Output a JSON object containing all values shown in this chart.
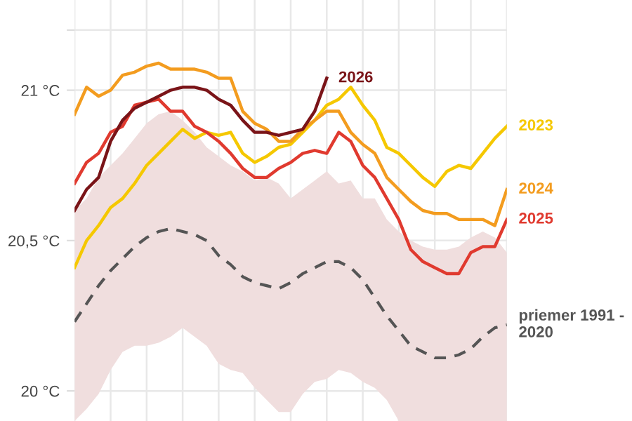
{
  "chart_data": {
    "type": "line",
    "categories": [
      null,
      null,
      null,
      null,
      null,
      null,
      null,
      null,
      null,
      null,
      null,
      null,
      null,
      null,
      null,
      null,
      null,
      null,
      null,
      null,
      null,
      null,
      null,
      null,
      null,
      null,
      null,
      null,
      null,
      null,
      null,
      null,
      null,
      null,
      null,
      null,
      null
    ],
    "series": [
      {
        "name": "priemer 1991 - 2020",
        "color": "#555555",
        "line_style": "dashed",
        "values": [
          20.23,
          20.29,
          20.35,
          20.4,
          20.44,
          20.48,
          20.51,
          20.53,
          20.54,
          20.53,
          20.52,
          20.5,
          20.45,
          20.42,
          20.38,
          20.36,
          20.35,
          20.34,
          20.36,
          20.39,
          20.41,
          20.43,
          20.43,
          20.41,
          20.37,
          20.31,
          20.25,
          20.2,
          20.15,
          20.13,
          20.11,
          20.11,
          20.12,
          20.14,
          20.18,
          20.21,
          20.22
        ],
        "upper": [
          20.6,
          20.64,
          20.71,
          20.75,
          20.79,
          20.84,
          20.89,
          20.92,
          20.93,
          20.9,
          20.86,
          20.81,
          20.78,
          20.75,
          20.73,
          20.7,
          20.71,
          20.69,
          20.64,
          20.67,
          20.7,
          20.73,
          20.69,
          20.7,
          20.64,
          20.64,
          20.57,
          20.53,
          20.5,
          20.48,
          20.47,
          20.47,
          20.48,
          20.51,
          20.53,
          20.51,
          20.46
        ],
        "lower": [
          19.9,
          19.94,
          19.99,
          20.07,
          20.13,
          20.15,
          20.15,
          20.16,
          20.18,
          20.21,
          20.18,
          20.15,
          20.09,
          20.07,
          20.06,
          20.01,
          19.97,
          19.93,
          19.93,
          19.99,
          20.03,
          20.04,
          20.07,
          20.06,
          20.03,
          20.01,
          19.97,
          19.9,
          19.9,
          19.9,
          19.9,
          19.9,
          19.9,
          19.9,
          19.9,
          19.9,
          19.9
        ]
      },
      {
        "name": "2023",
        "color": "#f5c800",
        "values": [
          20.41,
          20.5,
          20.55,
          20.61,
          20.64,
          20.69,
          20.75,
          20.79,
          20.83,
          20.87,
          20.84,
          20.86,
          20.85,
          20.86,
          20.79,
          20.76,
          20.78,
          20.81,
          20.82,
          20.86,
          20.9,
          20.95,
          20.97,
          21.01,
          20.95,
          20.9,
          20.81,
          20.79,
          20.75,
          20.71,
          20.68,
          20.73,
          20.75,
          20.74,
          20.79,
          20.84,
          20.88
        ]
      },
      {
        "name": "2024",
        "color": "#f39c1f",
        "values": [
          20.92,
          21.01,
          20.98,
          21.0,
          21.05,
          21.06,
          21.08,
          21.09,
          21.07,
          21.07,
          21.07,
          21.06,
          21.04,
          21.04,
          20.93,
          20.89,
          20.87,
          20.83,
          20.83,
          20.87,
          20.9,
          20.93,
          20.93,
          20.86,
          20.82,
          20.79,
          20.71,
          20.67,
          20.63,
          20.6,
          20.59,
          20.59,
          20.57,
          20.57,
          20.57,
          20.55,
          20.67
        ]
      },
      {
        "name": "2025",
        "color": "#e03a2f",
        "values": [
          20.69,
          20.76,
          20.79,
          20.86,
          20.88,
          20.95,
          20.96,
          20.97,
          20.93,
          20.93,
          20.88,
          20.86,
          20.83,
          20.79,
          20.74,
          20.71,
          20.71,
          20.74,
          20.76,
          20.79,
          20.8,
          20.79,
          20.86,
          20.83,
          20.75,
          20.71,
          20.64,
          20.57,
          20.47,
          20.43,
          20.41,
          20.39,
          20.39,
          20.46,
          20.48,
          20.48,
          20.57
        ]
      },
      {
        "name": "2026",
        "color": "#7a1418",
        "values": [
          20.6,
          20.67,
          20.71,
          20.83,
          20.9,
          20.94,
          20.96,
          20.98,
          21.0,
          21.01,
          21.01,
          21.0,
          20.97,
          20.95,
          20.9,
          20.86,
          20.86,
          20.85,
          20.86,
          20.87,
          20.93,
          21.04,
          null,
          null,
          null,
          null,
          null,
          null,
          null,
          null,
          null,
          null,
          null,
          null,
          null,
          null,
          null
        ]
      }
    ],
    "ylim": [
      19.9,
      21.3
    ],
    "yticks": [
      {
        "value": 20,
        "label": "20 °C"
      },
      {
        "value": 20.5,
        "label": "20,5 °C"
      },
      {
        "value": 21,
        "label": "21 °C"
      },
      {
        "value": 21.2,
        "label": null
      }
    ],
    "grid": true,
    "tick_labels": "y",
    "legend": false
  }
}
